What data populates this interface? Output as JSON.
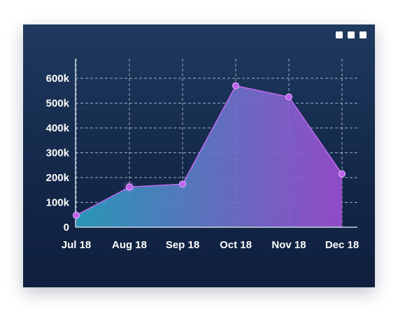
{
  "window": {
    "menu_icon": "more-dots-icon"
  },
  "chart_data": {
    "type": "area",
    "categories": [
      "Jul 18",
      "Aug 18",
      "Sep 18",
      "Oct 18",
      "Nov 18",
      "Dec 18"
    ],
    "values": [
      48000,
      162000,
      174000,
      570000,
      525000,
      215000
    ],
    "ylim": [
      0,
      600000
    ],
    "yticks": [
      0,
      100000,
      200000,
      300000,
      400000,
      500000,
      600000
    ],
    "ytick_labels": [
      "0",
      "100k",
      "200k",
      "300k",
      "400k",
      "500k",
      "600k"
    ],
    "grid": true,
    "colors": {
      "fill_start": "#2b9fbf",
      "fill_end": "#9b4fd0",
      "line": "#c06af0",
      "point": "#c060f0",
      "grid": "#d8e2f0",
      "text": "#ffffff"
    }
  }
}
